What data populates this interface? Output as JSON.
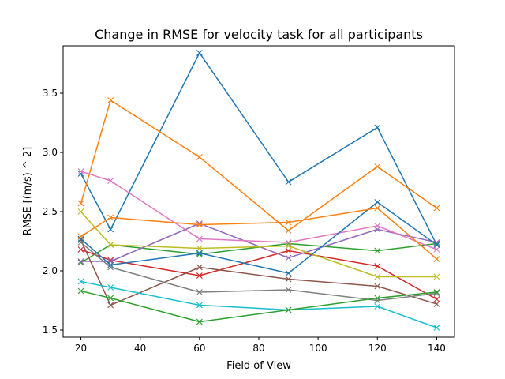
{
  "chart_data": {
    "type": "line",
    "title": "Change in RMSE for velocity task for all participants",
    "xlabel": "Field of View",
    "ylabel": "RMSE [(m/s) ^ 2]",
    "xlim": [
      14,
      146
    ],
    "ylim": [
      1.44,
      3.9
    ],
    "xticks": [
      20,
      40,
      60,
      80,
      100,
      120,
      140
    ],
    "yticks": [
      1.5,
      2.0,
      2.5,
      3.0,
      3.5
    ],
    "ytick_labels": [
      "1.5",
      "2.0",
      "2.5",
      "3.0",
      "3.5"
    ],
    "grid": false,
    "marker": "x",
    "x": [
      20,
      30,
      60,
      90,
      120,
      140
    ],
    "series": [
      {
        "color": "#1f77b4",
        "values": [
          2.82,
          2.35,
          3.84,
          2.75,
          3.21,
          2.22
        ]
      },
      {
        "color": "#ff7f0e",
        "values": [
          2.57,
          3.44,
          2.96,
          2.34,
          2.88,
          2.53
        ]
      },
      {
        "color": "#2ca02c",
        "values": [
          2.07,
          2.22,
          2.14,
          2.23,
          2.17,
          2.23
        ]
      },
      {
        "color": "#d62728",
        "values": [
          2.18,
          2.09,
          1.96,
          2.17,
          2.04,
          1.76
        ]
      },
      {
        "color": "#9467bd",
        "values": [
          2.08,
          2.08,
          2.4,
          2.11,
          2.35,
          2.24
        ]
      },
      {
        "color": "#8c564b",
        "values": [
          2.26,
          1.71,
          2.03,
          1.93,
          1.87,
          1.72
        ]
      },
      {
        "color": "#e377c2",
        "values": [
          2.84,
          2.76,
          2.27,
          2.24,
          2.38,
          2.18
        ]
      },
      {
        "color": "#7f7f7f",
        "values": [
          2.24,
          2.03,
          1.82,
          1.84,
          1.75,
          1.81
        ]
      },
      {
        "color": "#bcbd22",
        "values": [
          2.5,
          2.22,
          2.19,
          2.21,
          1.95,
          1.95
        ]
      },
      {
        "color": "#17becf",
        "values": [
          1.91,
          1.86,
          1.71,
          1.67,
          1.7,
          1.52
        ]
      },
      {
        "color": "#1f77b4",
        "values": [
          2.27,
          2.05,
          2.15,
          1.98,
          2.58,
          2.22
        ]
      },
      {
        "color": "#ff7f0e",
        "values": [
          2.29,
          2.45,
          2.39,
          2.41,
          2.53,
          2.1
        ]
      },
      {
        "color": "#2ca02c",
        "values": [
          1.83,
          1.77,
          1.57,
          1.67,
          1.77,
          1.82
        ]
      }
    ]
  }
}
